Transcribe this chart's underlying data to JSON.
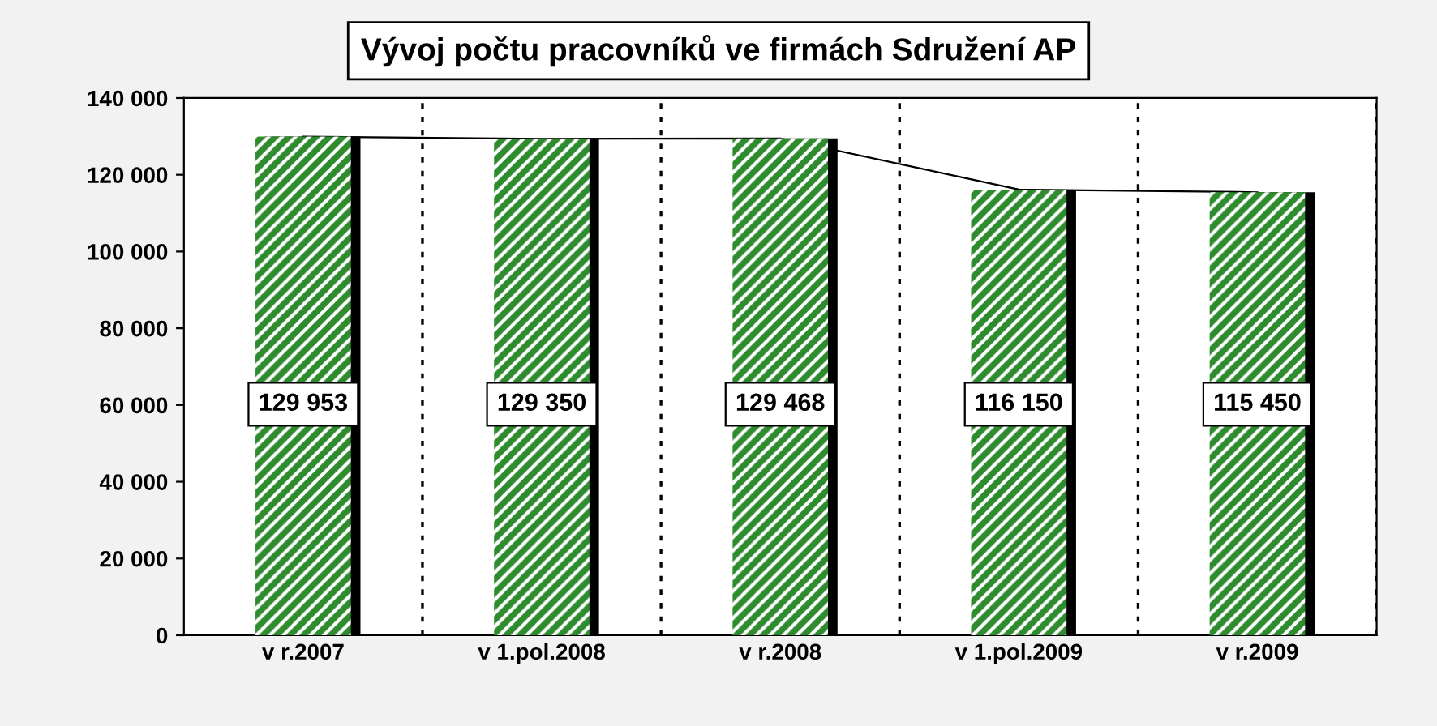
{
  "chart_data": {
    "type": "bar",
    "title": "Vývoj počtu pracovníků ve firmách Sdružení AP",
    "categories": [
      "v r.2007",
      "v 1.pol.2008",
      "v r.2008",
      "v 1.pol.2009",
      "v r.2009"
    ],
    "series": [
      {
        "color": "#2e8b2e",
        "values": [
          129953,
          129350,
          129468,
          116150,
          115450
        ],
        "value_labels": [
          "129 953",
          "129 350",
          "129 468",
          "116 150",
          "115 450"
        ]
      },
      {
        "type": "line",
        "color": "#000000",
        "values": [
          129953,
          129350,
          129468,
          116150,
          115450
        ]
      }
    ],
    "ylim": [
      0,
      140000
    ],
    "yticks": [
      {
        "value": 0,
        "label": "0"
      },
      {
        "value": 20000,
        "label": "20 000"
      },
      {
        "value": 40000,
        "label": "40 000"
      },
      {
        "value": 60000,
        "label": "60 000"
      },
      {
        "value": 80000,
        "label": "80 000"
      },
      {
        "value": 100000,
        "label": "100 000"
      },
      {
        "value": 120000,
        "label": "120 000"
      },
      {
        "value": 140000,
        "label": "140 000"
      }
    ],
    "grid": "x",
    "legend": false
  }
}
